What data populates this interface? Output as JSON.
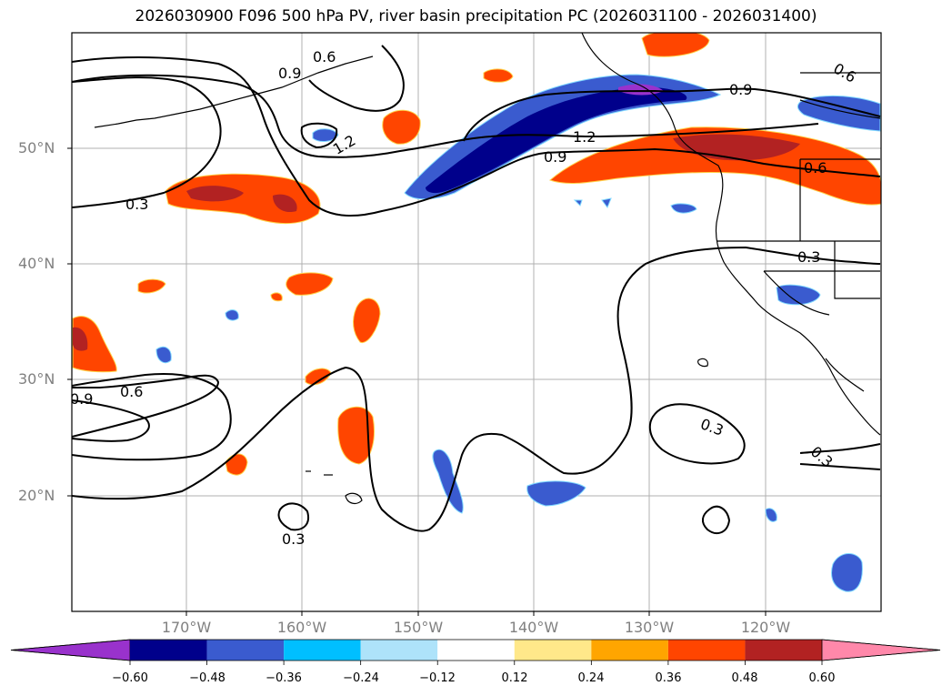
{
  "title": "2026030900 F096 500 hPa PV, river basin precipitation PC (2026031100 - 2026031400)",
  "lat_labels": [
    "50°N",
    "40°N",
    "30°N",
    "20°N"
  ],
  "lon_labels": [
    "170°W",
    "160°W",
    "150°W",
    "140°W",
    "130°W",
    "120°W"
  ],
  "contour_labels": [
    "0.9",
    "0.6",
    "1.2",
    "0.3",
    "1.2",
    "0.9",
    "0.9",
    "0.6",
    "0.6",
    "0.3",
    "0.9",
    "0.6",
    "0.3",
    "0.3",
    "0.3"
  ],
  "colorbar": {
    "ticks": [
      "−0.60",
      "−0.48",
      "−0.36",
      "−0.24",
      "−0.12",
      "0.12",
      "0.24",
      "0.36",
      "0.48",
      "0.60"
    ],
    "colors": [
      "#9932cc",
      "#00008b",
      "#3a5bcf",
      "#00bfff",
      "#aee3fa",
      "#ffffff",
      "#ffe88a",
      "#ffa500",
      "#ff4500",
      "#b22222",
      "#ff88aa"
    ]
  },
  "chart_data": {
    "type": "map",
    "field_contours": "500 hPa PV",
    "shading": "river basin precipitation PC",
    "lat_range": [
      10,
      60
    ],
    "lon_range": [
      -180,
      -110
    ],
    "gridlines": true,
    "colorbar_levels": [
      -0.6,
      -0.48,
      -0.36,
      -0.24,
      -0.12,
      0.12,
      0.24,
      0.36,
      0.48,
      0.6
    ]
  }
}
